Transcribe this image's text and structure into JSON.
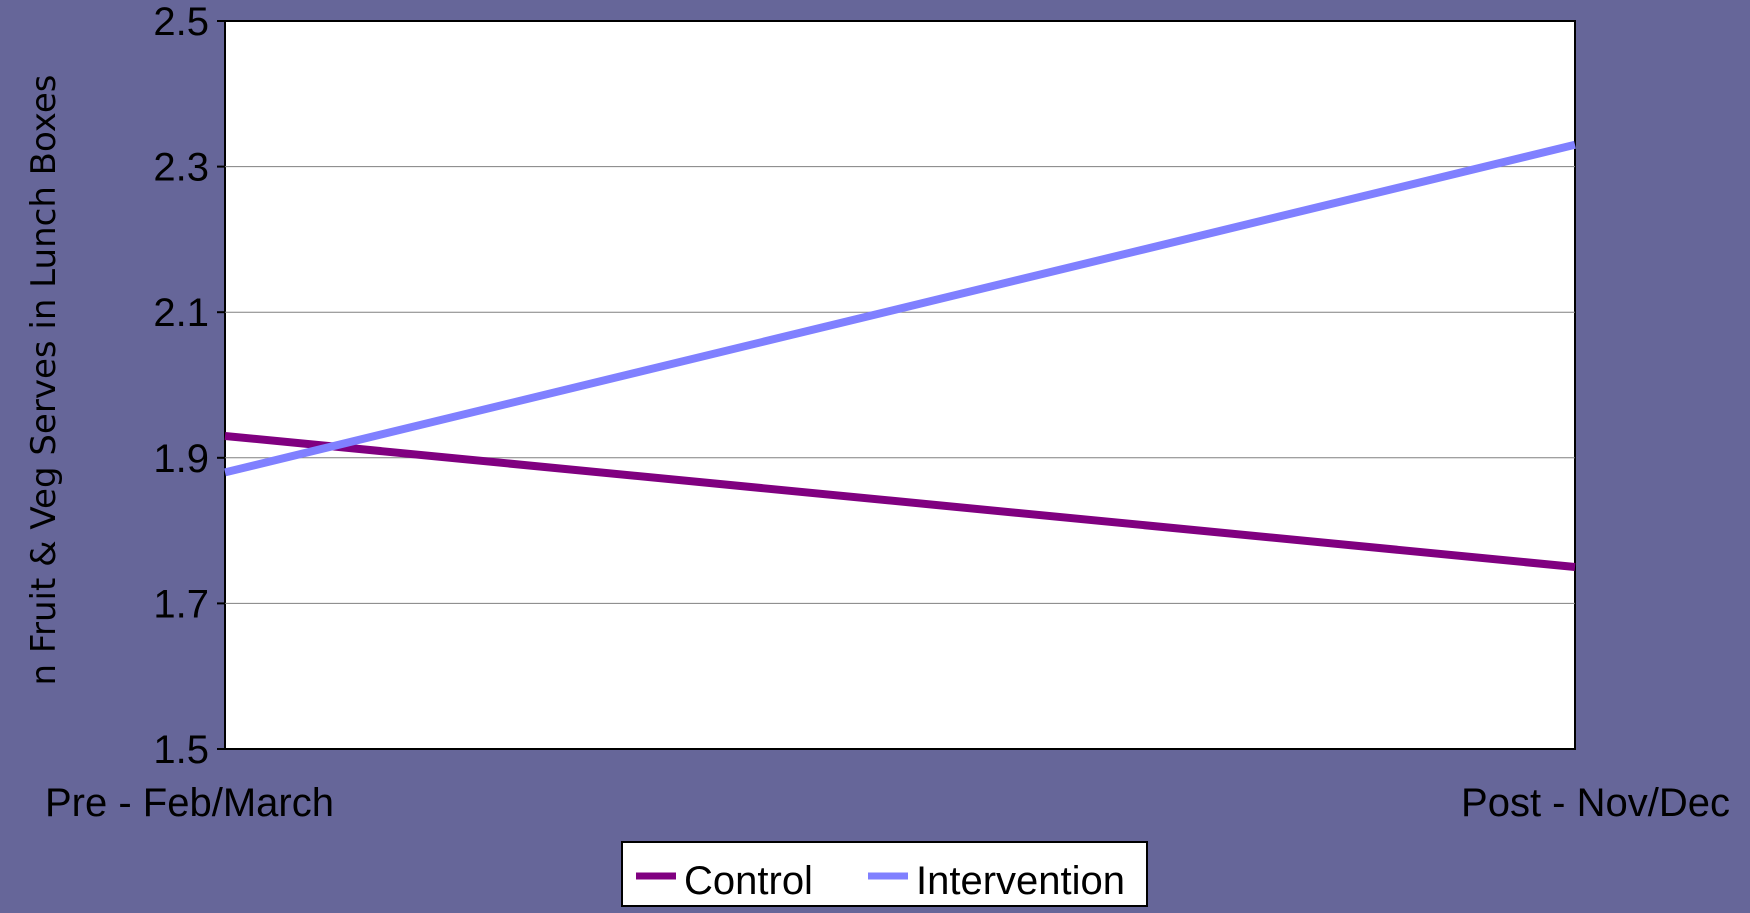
{
  "chart_data": {
    "type": "line",
    "title": "",
    "xlabel": "",
    "ylabel": "n Fruit & Veg Serves in Lunch Boxes",
    "categories": [
      "Pre - Feb/March",
      "Post - Nov/Dec"
    ],
    "ylim": [
      1.5,
      2.5
    ],
    "yticks": [
      "1.5",
      "1.7",
      "1.9",
      "2.1",
      "2.3",
      "2.5"
    ],
    "grid": true,
    "legend_position": "bottom",
    "series": [
      {
        "name": "Control",
        "values": [
          1.93,
          1.75
        ],
        "color": "#800080"
      },
      {
        "name": "Intervention",
        "values": [
          1.88,
          2.33
        ],
        "color": "#8080FF"
      }
    ]
  },
  "colors": {
    "background": "#666699",
    "plot_area": "#FFFFFF",
    "gridline": "#808080"
  }
}
